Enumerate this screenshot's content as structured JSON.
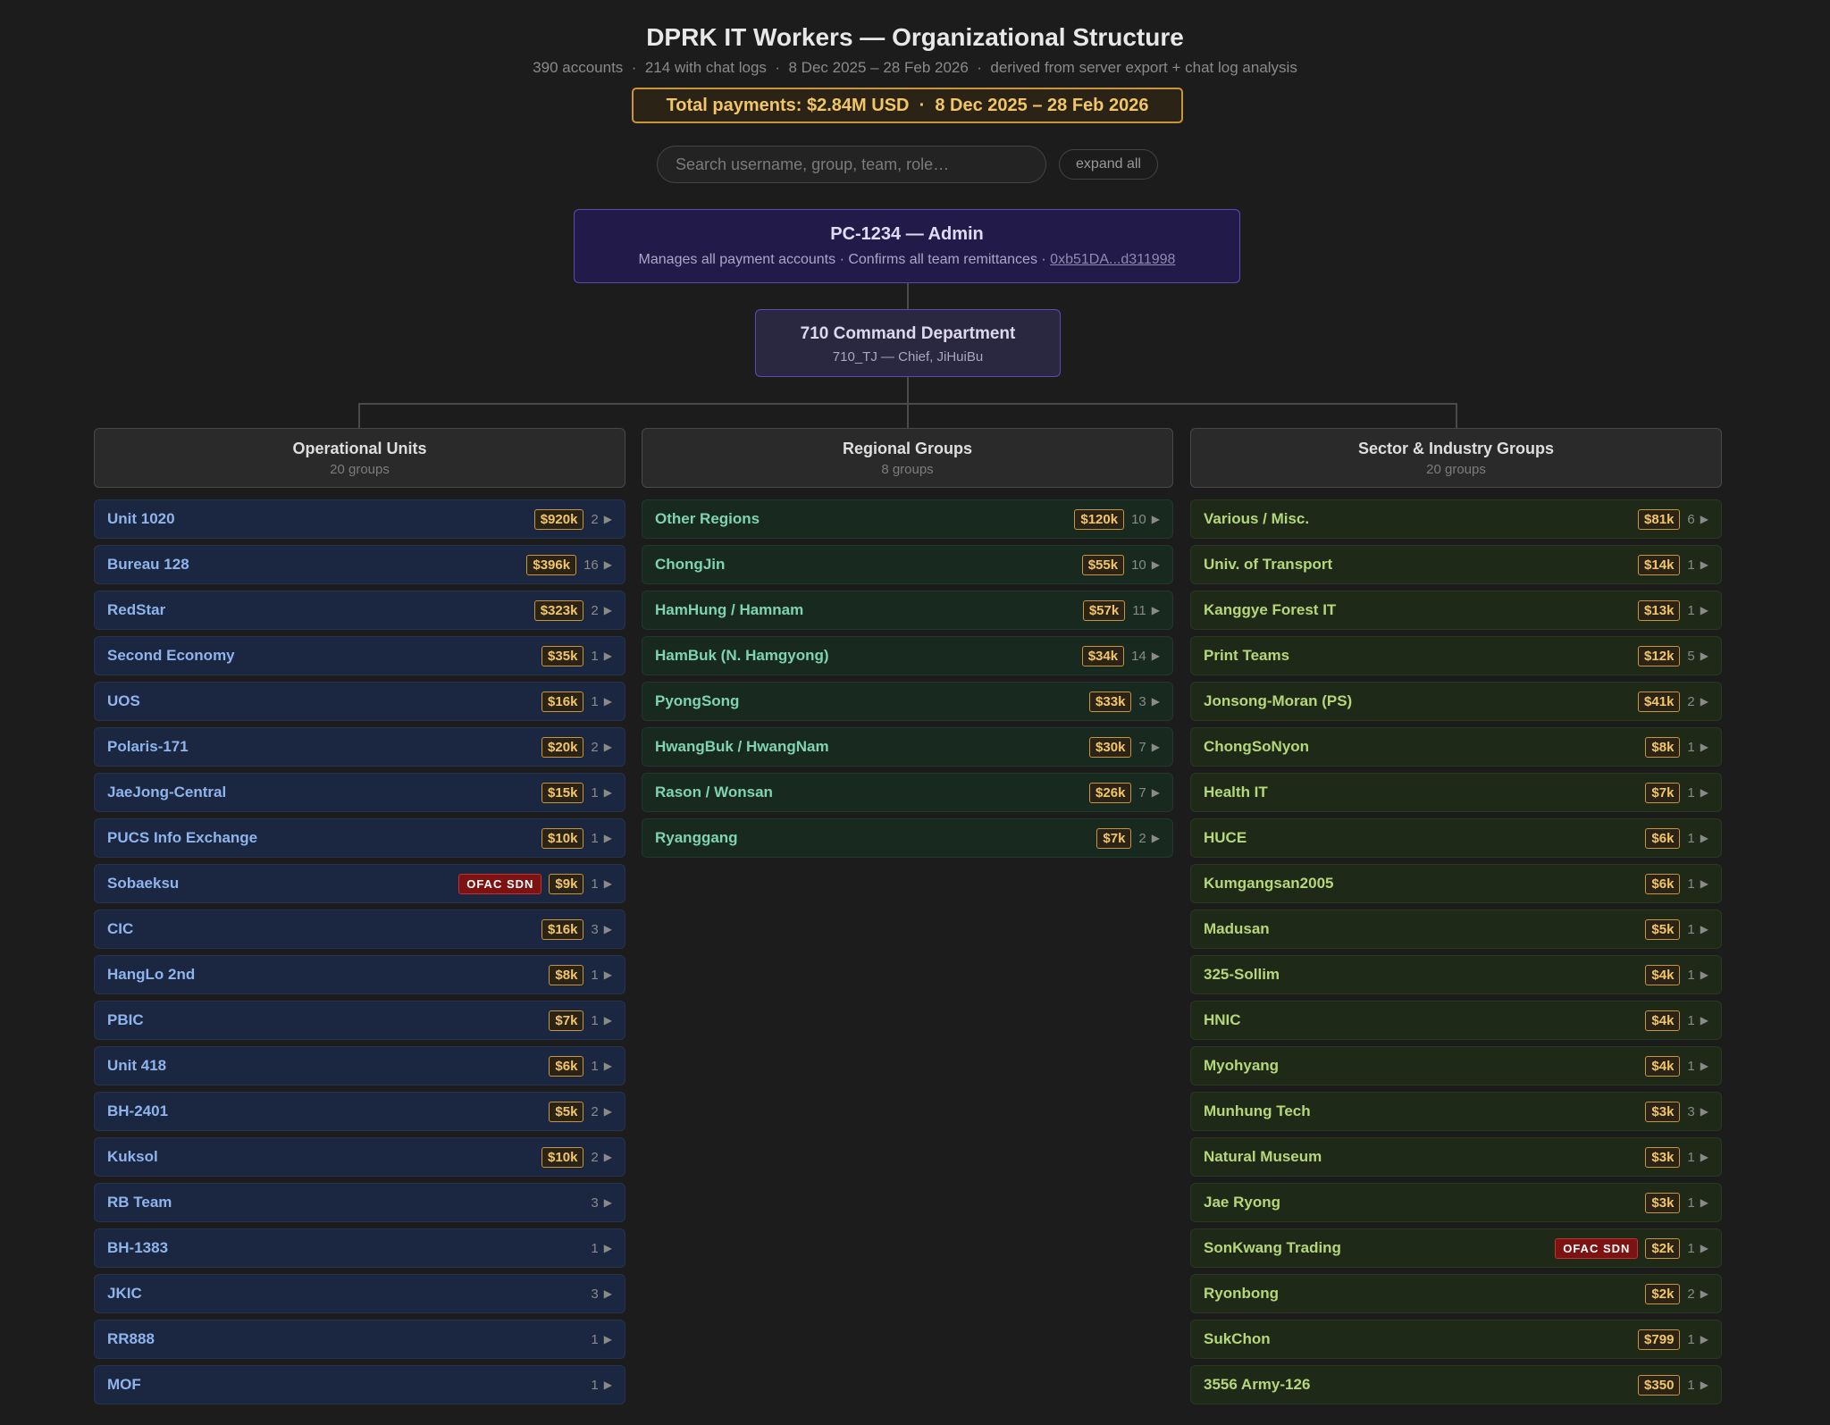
{
  "header": {
    "title": "DPRK IT Workers — Organizational Structure",
    "subtitle": "390 accounts  ·  214 with chat logs  ·  8 Dec 2025 – 28 Feb 2026  ·  derived from server export + chat log analysis",
    "total": "Total payments: $2.84M USD  ·  8 Dec 2025 – 28 Feb 2026"
  },
  "controls": {
    "search_placeholder": "Search username, group, team, role…",
    "expand": "expand all"
  },
  "admin": {
    "title": "PC-1234 — Admin",
    "description": "Manages all payment accounts · Confirms all team remittances · ",
    "address": "0xb51DA...d311998"
  },
  "command": {
    "title": "710 Command Department",
    "subtitle": "710_TJ — Chief, JiHuiBu"
  },
  "columns": [
    {
      "title": "Operational Units",
      "count": "20 groups",
      "groups": [
        {
          "name": "Unit 1020",
          "amount": "$920k",
          "members": "2"
        },
        {
          "name": "Bureau 128",
          "amount": "$396k",
          "members": "16"
        },
        {
          "name": "RedStar",
          "amount": "$323k",
          "members": "2"
        },
        {
          "name": "Second Economy",
          "amount": "$35k",
          "members": "1"
        },
        {
          "name": "UOS",
          "amount": "$16k",
          "members": "1"
        },
        {
          "name": "Polaris-171",
          "amount": "$20k",
          "members": "2"
        },
        {
          "name": "JaeJong-Central",
          "amount": "$15k",
          "members": "1"
        },
        {
          "name": "PUCS Info Exchange",
          "amount": "$10k",
          "members": "1"
        },
        {
          "name": "Sobaeksu",
          "flag": "OFAC SDN",
          "amount": "$9k",
          "members": "1"
        },
        {
          "name": "CIC",
          "amount": "$16k",
          "members": "3"
        },
        {
          "name": "HangLo 2nd",
          "amount": "$8k",
          "members": "1"
        },
        {
          "name": "PBIC",
          "amount": "$7k",
          "members": "1"
        },
        {
          "name": "Unit 418",
          "amount": "$6k",
          "members": "1"
        },
        {
          "name": "BH-2401",
          "amount": "$5k",
          "members": "2"
        },
        {
          "name": "Kuksol",
          "amount": "$10k",
          "members": "2"
        },
        {
          "name": "RB Team",
          "members": "3"
        },
        {
          "name": "BH-1383",
          "members": "1"
        },
        {
          "name": "JKIC",
          "members": "3"
        },
        {
          "name": "RR888",
          "members": "1"
        },
        {
          "name": "MOF",
          "members": "1"
        }
      ]
    },
    {
      "title": "Regional Groups",
      "count": "8 groups",
      "groups": [
        {
          "name": "Other Regions",
          "amount": "$120k",
          "members": "10"
        },
        {
          "name": "ChongJin",
          "amount": "$55k",
          "members": "10"
        },
        {
          "name": "HamHung / Hamnam",
          "amount": "$57k",
          "members": "11"
        },
        {
          "name": "HamBuk (N. Hamgyong)",
          "amount": "$34k",
          "members": "14"
        },
        {
          "name": "PyongSong",
          "amount": "$33k",
          "members": "3"
        },
        {
          "name": "HwangBuk / HwangNam",
          "amount": "$30k",
          "members": "7"
        },
        {
          "name": "Rason / Wonsan",
          "amount": "$26k",
          "members": "7"
        },
        {
          "name": "Ryanggang",
          "amount": "$7k",
          "members": "2"
        }
      ]
    },
    {
      "title": "Sector & Industry Groups",
      "count": "20 groups",
      "groups": [
        {
          "name": "Various / Misc.",
          "amount": "$81k",
          "members": "6"
        },
        {
          "name": "Univ. of Transport",
          "amount": "$14k",
          "members": "1"
        },
        {
          "name": "Kanggye Forest IT",
          "amount": "$13k",
          "members": "1"
        },
        {
          "name": "Print Teams",
          "amount": "$12k",
          "members": "5"
        },
        {
          "name": "Jonsong-Moran (PS)",
          "amount": "$41k",
          "members": "2"
        },
        {
          "name": "ChongSoNyon",
          "amount": "$8k",
          "members": "1"
        },
        {
          "name": "Health IT",
          "amount": "$7k",
          "members": "1"
        },
        {
          "name": "HUCE",
          "amount": "$6k",
          "members": "1"
        },
        {
          "name": "Kumgangsan2005",
          "amount": "$6k",
          "members": "1"
        },
        {
          "name": "Madusan",
          "amount": "$5k",
          "members": "1"
        },
        {
          "name": "325-Sollim",
          "amount": "$4k",
          "members": "1"
        },
        {
          "name": "HNIC",
          "amount": "$4k",
          "members": "1"
        },
        {
          "name": "Myohyang",
          "amount": "$4k",
          "members": "1"
        },
        {
          "name": "Munhung Tech",
          "amount": "$3k",
          "members": "3"
        },
        {
          "name": "Natural Museum",
          "amount": "$3k",
          "members": "1"
        },
        {
          "name": "Jae Ryong",
          "amount": "$3k",
          "members": "1"
        },
        {
          "name": "SonKwang Trading",
          "flag": "OFAC SDN",
          "amount": "$2k",
          "members": "1"
        },
        {
          "name": "Ryonbong",
          "amount": "$2k",
          "members": "2"
        },
        {
          "name": "SukChon",
          "amount": "$799",
          "members": "1"
        },
        {
          "name": "3556 Army-126",
          "amount": "$350",
          "members": "1"
        }
      ]
    }
  ]
}
